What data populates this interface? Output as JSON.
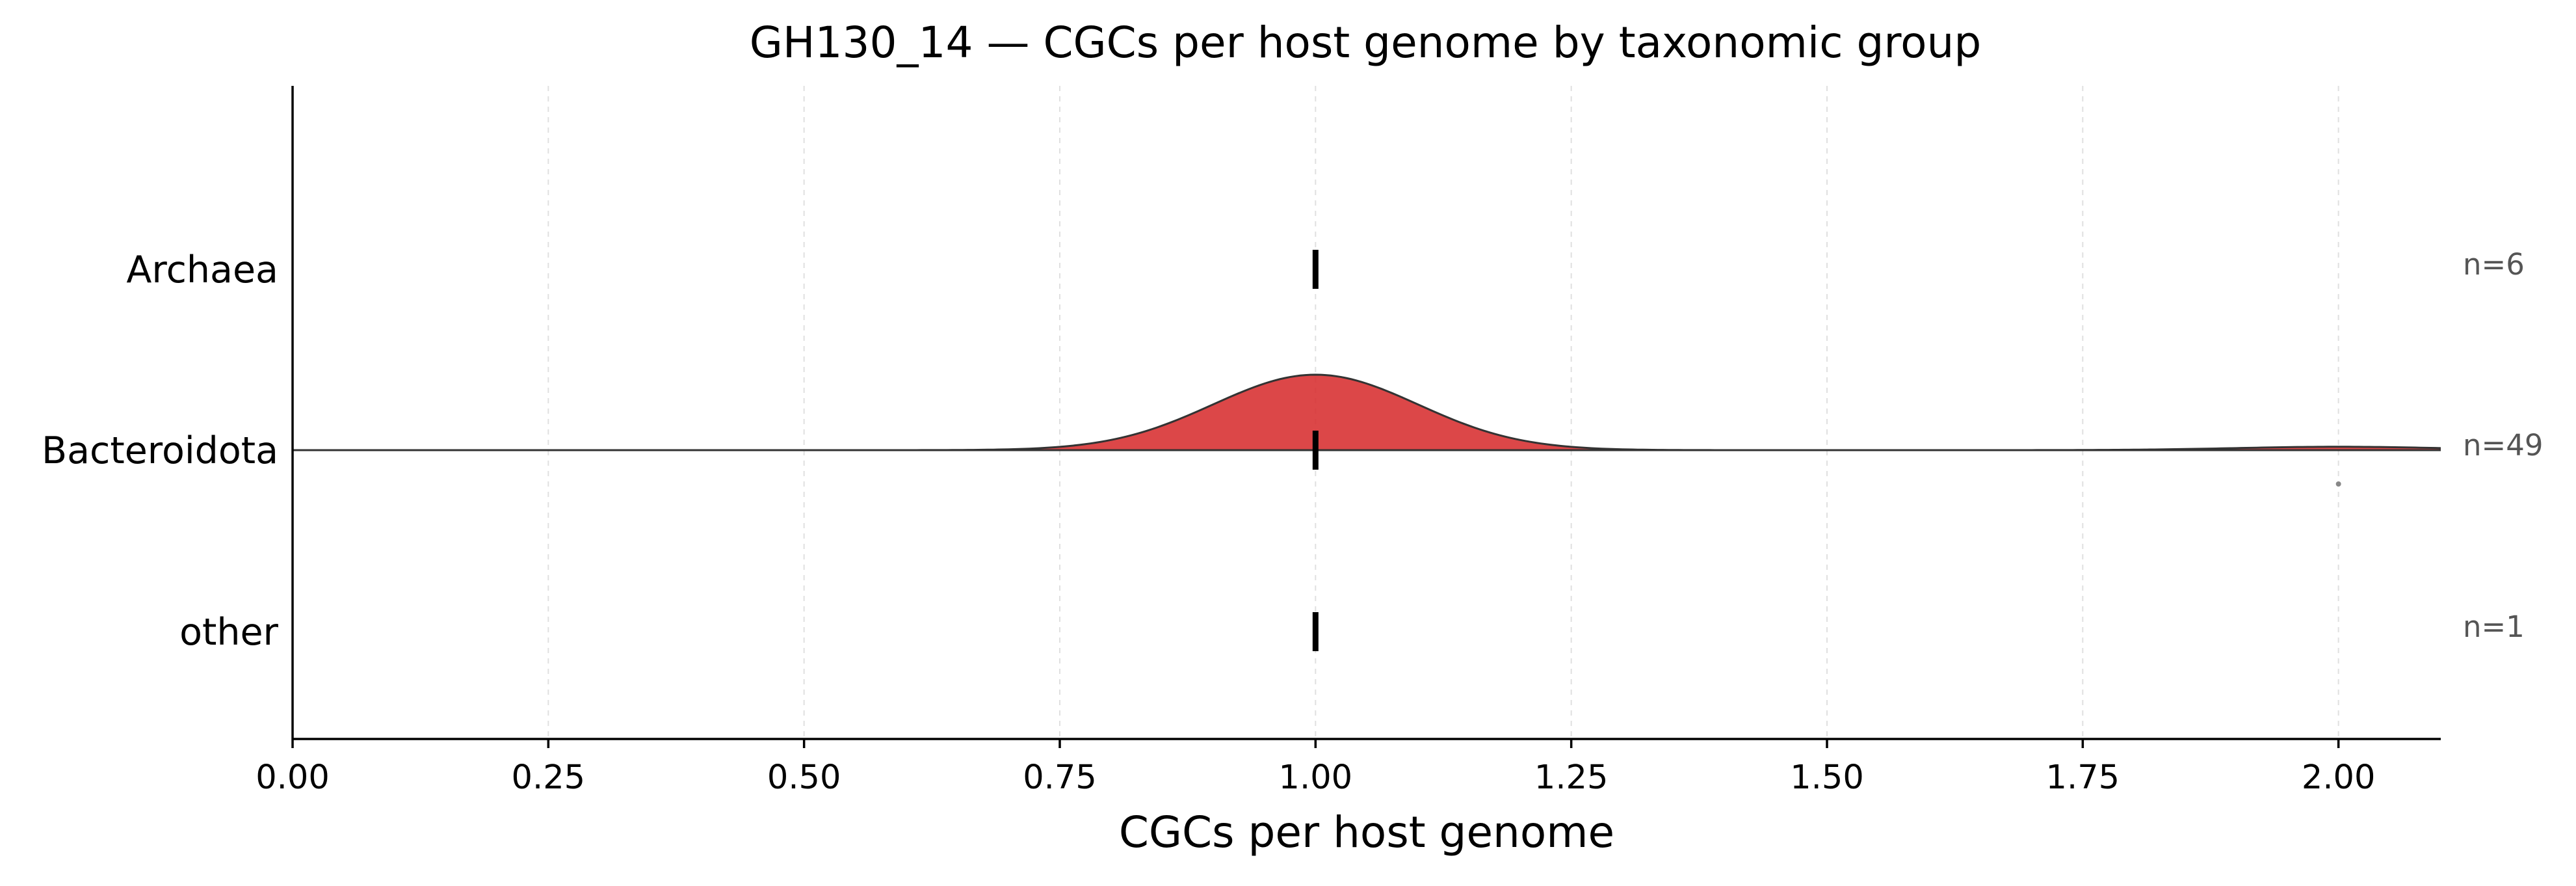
{
  "chart_data": {
    "type": "ridgeline",
    "title": "GH130_14 — CGCs per host genome by taxonomic group",
    "xlabel": "CGCs per host genome",
    "ylabel": "",
    "xlim": [
      0,
      2.1
    ],
    "xticks": [
      0.0,
      0.25,
      0.5,
      0.75,
      1.0,
      1.25,
      1.5,
      1.75,
      2.0
    ],
    "xtick_labels": [
      "0.00",
      "0.25",
      "0.50",
      "0.75",
      "1.00",
      "1.25",
      "1.50",
      "1.75",
      "2.00"
    ],
    "grid": "vertical dashed",
    "categories": [
      "Archaea",
      "Bacteroidota",
      "other"
    ],
    "counts": [
      "n=6",
      "n=49",
      "n=1"
    ],
    "medians": [
      1.0,
      1.0,
      1.0
    ],
    "groups": [
      {
        "name": "Archaea",
        "count_label": "n=6",
        "median": 1.0,
        "density": null,
        "outliers": []
      },
      {
        "name": "Bacteroidota",
        "count_label": "n=49",
        "median": 1.0,
        "density": {
          "components": [
            {
              "center": 1.0,
              "sd": 0.1,
              "relative_height": 1.0
            },
            {
              "center": 2.0,
              "sd": 0.1,
              "relative_height": 0.045
            }
          ],
          "color": "#d62728"
        },
        "outliers": [
          2.0
        ]
      },
      {
        "name": "other",
        "count_label": "n=1",
        "median": 1.0,
        "density": null,
        "outliers": []
      }
    ]
  },
  "colors": {
    "density_fill": "#d62728",
    "density_stroke": "#333333",
    "median": "#000000",
    "outlier": "#888888",
    "count_text": "#555555"
  }
}
